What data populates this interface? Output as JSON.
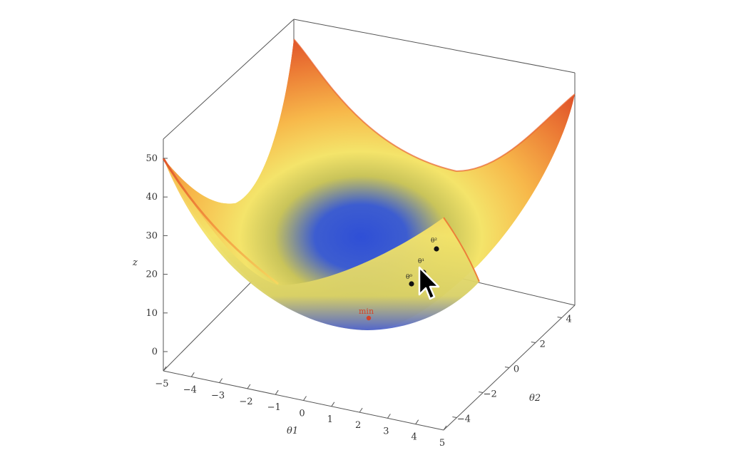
{
  "chart_data": {
    "type": "surface",
    "function": "z = a*theta1^2 + b*theta2^2 (convex bowl)",
    "xlabel": "θ1",
    "ylabel": "θ2",
    "zlabel": "z",
    "x_ticks": [
      "−5",
      "−4",
      "−3",
      "−2",
      "−1",
      "0",
      "1",
      "2",
      "3",
      "4",
      "5"
    ],
    "y_ticks": [
      "−4",
      "−2",
      "0",
      "2",
      "4"
    ],
    "z_ticks": [
      "0",
      "10",
      "20",
      "30",
      "40",
      "50"
    ],
    "xlim": [
      -5,
      5
    ],
    "ylim": [
      -5,
      5
    ],
    "zlim": [
      -5,
      55
    ],
    "grid": false,
    "colormap": [
      "#2f4fd6",
      "#f4e46a",
      "#f7b84a",
      "#e0552a"
    ],
    "points": [
      {
        "label": "θ⁰",
        "kind": "iterate"
      },
      {
        "label": "θ¹",
        "kind": "iterate"
      },
      {
        "label": "θ²",
        "kind": "iterate"
      },
      {
        "label": "min",
        "kind": "minimum",
        "color": "#d2432a"
      }
    ]
  }
}
